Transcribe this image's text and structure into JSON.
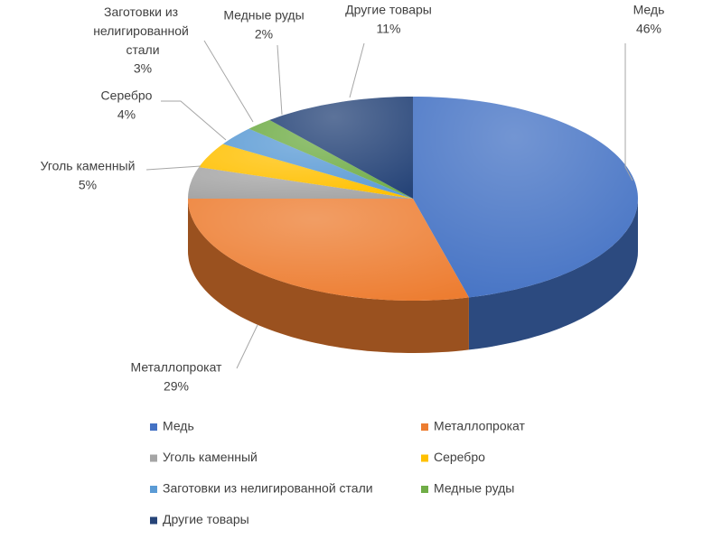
{
  "chart_data": {
    "type": "pie",
    "categories": [
      "Медь",
      "Металлопрокат",
      "Уголь каменный",
      "Серебро",
      "Заготовки из нелигированной стали",
      "Медные руды",
      "Другие товары"
    ],
    "values": [
      46,
      29,
      5,
      4,
      3,
      2,
      11
    ],
    "value_labels": [
      "46%",
      "29%",
      "5%",
      "4%",
      "3%",
      "2%",
      "11%"
    ],
    "colors": [
      "#4472c4",
      "#ed7d31",
      "#a5a5a5",
      "#ffc000",
      "#5b9bd5",
      "#70ad47",
      "#264478"
    ],
    "legend": "bottom"
  }
}
